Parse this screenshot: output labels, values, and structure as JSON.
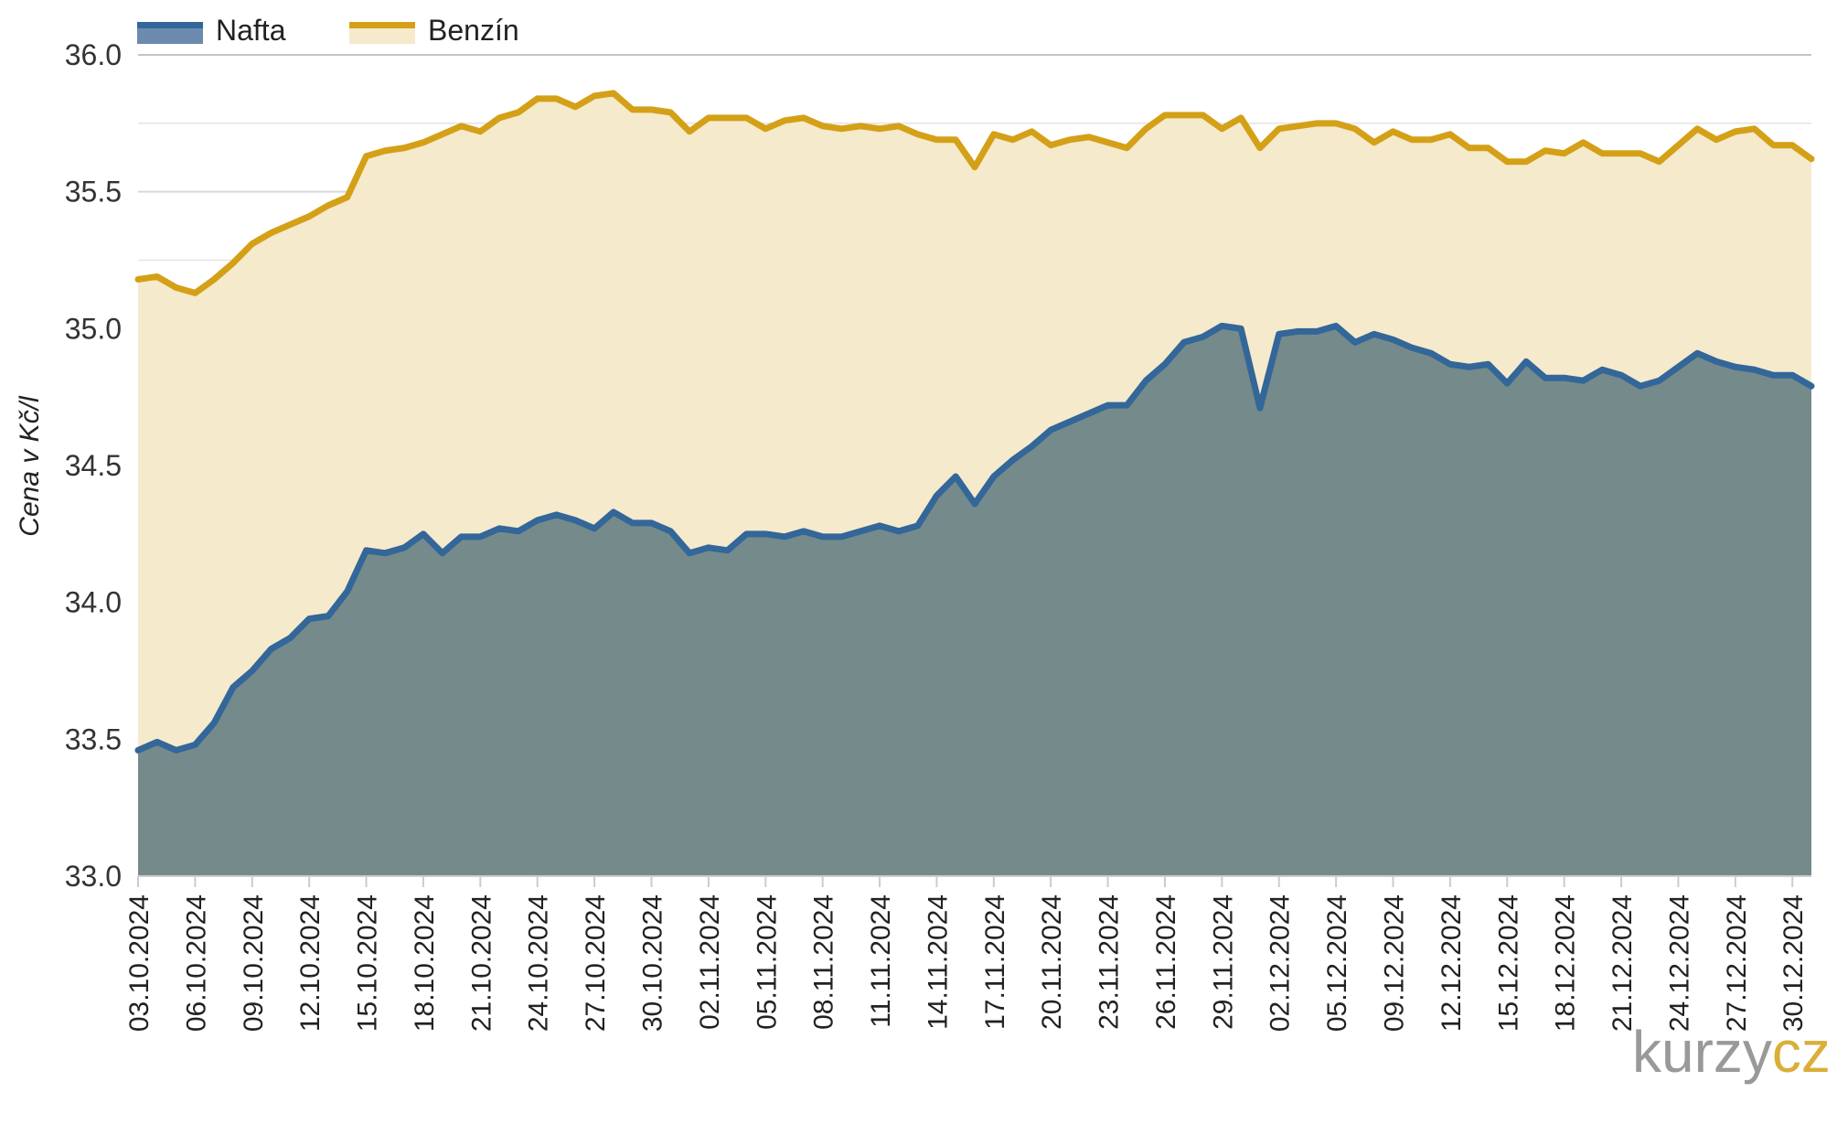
{
  "chart_data": {
    "type": "area",
    "title": "",
    "xlabel": "",
    "ylabel": "Cena v Kč/l",
    "ylim": [
      33.0,
      36.0
    ],
    "yticks": [
      "33.0",
      "33.5",
      "34.0",
      "34.5",
      "35.0",
      "35.5",
      "36.0"
    ],
    "grid": true,
    "legend_position": "top-left",
    "x_tick_labels": [
      "03.10.2024",
      "06.10.2024",
      "09.10.2024",
      "12.10.2024",
      "15.10.2024",
      "18.10.2024",
      "21.10.2024",
      "24.10.2024",
      "27.10.2024",
      "30.10.2024",
      "02.11.2024",
      "05.11.2024",
      "08.11.2024",
      "11.11.2024",
      "14.11.2024",
      "17.11.2024",
      "20.11.2024",
      "23.11.2024",
      "26.11.2024",
      "29.11.2024",
      "02.12.2024",
      "05.12.2024",
      "09.12.2024",
      "12.12.2024",
      "15.12.2024",
      "18.12.2024",
      "21.12.2024",
      "24.12.2024",
      "27.12.2024",
      "30.12.2024"
    ],
    "x_start": "03.10.2024",
    "x_end": "31.12.2024",
    "series": [
      {
        "name": "Nafta",
        "color": "#336699",
        "fill": "#758a8b",
        "values": [
          33.46,
          33.49,
          33.46,
          33.48,
          33.56,
          33.69,
          33.75,
          33.83,
          33.87,
          33.94,
          33.95,
          34.04,
          34.19,
          34.18,
          34.2,
          34.25,
          34.18,
          34.24,
          34.24,
          34.27,
          34.26,
          34.3,
          34.32,
          34.3,
          34.27,
          34.33,
          34.29,
          34.29,
          34.26,
          34.18,
          34.2,
          34.19,
          34.25,
          34.25,
          34.24,
          34.26,
          34.24,
          34.24,
          34.26,
          34.28,
          34.26,
          34.28,
          34.39,
          34.46,
          34.36,
          34.46,
          34.52,
          34.57,
          34.63,
          34.66,
          34.69,
          34.72,
          34.72,
          34.81,
          34.87,
          34.95,
          34.97,
          35.01,
          35.0,
          34.71,
          34.98,
          34.99,
          34.99,
          35.01,
          34.95,
          34.98,
          34.96,
          34.93,
          34.91,
          34.87,
          34.86,
          34.87,
          34.8,
          34.88,
          34.82,
          34.82,
          34.81,
          34.85,
          34.83,
          34.79,
          34.81,
          34.86,
          34.91,
          34.88,
          34.86,
          34.85,
          34.83,
          34.83,
          34.79
        ]
      },
      {
        "name": "Benzín",
        "color": "#d4a017",
        "fill": "#f5eacc",
        "values": [
          35.18,
          35.19,
          35.15,
          35.13,
          35.18,
          35.24,
          35.31,
          35.35,
          35.38,
          35.41,
          35.45,
          35.48,
          35.63,
          35.65,
          35.66,
          35.68,
          35.71,
          35.74,
          35.72,
          35.77,
          35.79,
          35.84,
          35.84,
          35.81,
          35.85,
          35.86,
          35.8,
          35.8,
          35.79,
          35.72,
          35.77,
          35.77,
          35.77,
          35.73,
          35.76,
          35.77,
          35.74,
          35.73,
          35.74,
          35.73,
          35.74,
          35.71,
          35.69,
          35.69,
          35.59,
          35.71,
          35.69,
          35.72,
          35.67,
          35.69,
          35.7,
          35.68,
          35.66,
          35.73,
          35.78,
          35.78,
          35.78,
          35.73,
          35.77,
          35.66,
          35.73,
          35.74,
          35.75,
          35.75,
          35.73,
          35.68,
          35.72,
          35.69,
          35.69,
          35.71,
          35.66,
          35.66,
          35.61,
          35.61,
          35.65,
          35.64,
          35.68,
          35.64,
          35.64,
          35.64,
          35.61,
          35.67,
          35.73,
          35.69,
          35.72,
          35.73,
          35.67,
          35.67,
          35.62
        ]
      }
    ]
  },
  "watermark": {
    "part1": "kurzy",
    "part2": "cz",
    "color1": "#888888",
    "color2": "#d4a017"
  },
  "colors": {
    "grid": "#d9d9d9",
    "axis": "#cccccc"
  }
}
